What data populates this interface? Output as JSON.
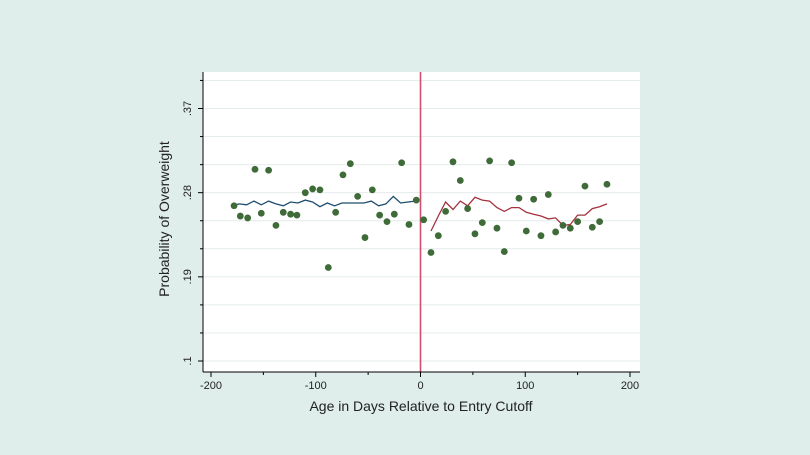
{
  "chart_data": {
    "type": "scatter",
    "title": "",
    "xlabel": "Age in Days Relative to Entry Cutoff",
    "ylabel": "Probability of Overweight",
    "xlim": [
      -210,
      210
    ],
    "ylim": [
      0.095,
      0.4
    ],
    "x_ticks": [
      -200,
      -100,
      0,
      100,
      200
    ],
    "x_tick_labels": [
      "-200",
      "-100",
      "0",
      "100",
      "200"
    ],
    "y_ticks": [
      0.1,
      0.19,
      0.28,
      0.37
    ],
    "y_tick_labels": [
      ".1",
      ".19",
      ".28",
      ".37"
    ],
    "grid": true,
    "legend": "none",
    "cutoff_x": 0,
    "colors": {
      "background": "#dfeeeb",
      "plot_background": "#ffffff",
      "grid": "#e4ecec",
      "points": "#3e6b38",
      "fit_left": "#1f4e6e",
      "fit_right": "#a4323f",
      "cutoff_line": "#d1506f",
      "axis": "#000000"
    },
    "series": [
      {
        "type": "scatter",
        "x": [
          -178,
          -172,
          -165,
          -158,
          -152,
          -145,
          -138,
          -131,
          -124,
          -118,
          -110,
          -103,
          -96,
          -88,
          -81,
          -74,
          -67,
          -60,
          -53,
          -46,
          -39,
          -32,
          -25,
          -18,
          -11,
          -4,
          3,
          10,
          17,
          24,
          31,
          38,
          45,
          52,
          59,
          66,
          73,
          80,
          87,
          94,
          101,
          108,
          115,
          122,
          129,
          136,
          143,
          150,
          157,
          164,
          171,
          178
        ],
        "y": [
          0.266,
          0.255,
          0.253,
          0.305,
          0.258,
          0.304,
          0.245,
          0.259,
          0.257,
          0.256,
          0.28,
          0.284,
          0.283,
          0.2,
          0.259,
          0.299,
          0.311,
          0.276,
          0.232,
          0.283,
          0.256,
          0.249,
          0.257,
          0.312,
          0.246,
          0.272,
          0.251,
          0.216,
          0.234,
          0.26,
          0.313,
          0.293,
          0.263,
          0.236,
          0.248,
          0.314,
          0.242,
          0.217,
          0.312,
          0.274,
          0.239,
          0.273,
          0.234,
          0.278,
          0.238,
          0.245,
          0.242,
          0.249,
          0.287,
          0.243,
          0.249,
          0.289
        ]
      },
      {
        "type": "line",
        "name": "",
        "x": [
          -180,
          -173,
          -166,
          -159,
          -152,
          -145,
          -138,
          -131,
          -124,
          -117,
          -110,
          -103,
          -96,
          -89,
          -82,
          -75,
          -68,
          -61,
          -54,
          -47,
          -40,
          -33,
          -26,
          -19,
          -12,
          -5
        ],
        "y": [
          0.266,
          0.268,
          0.267,
          0.271,
          0.267,
          0.271,
          0.268,
          0.266,
          0.27,
          0.269,
          0.272,
          0.27,
          0.265,
          0.269,
          0.266,
          0.269,
          0.269,
          0.269,
          0.269,
          0.271,
          0.266,
          0.268,
          0.276,
          0.269,
          0.27,
          0.271
        ]
      },
      {
        "type": "line",
        "name": "",
        "x": [
          10,
          17,
          24,
          31,
          38,
          45,
          52,
          59,
          66,
          73,
          80,
          87,
          94,
          101,
          108,
          115,
          122,
          129,
          136,
          143,
          150,
          157,
          164,
          171,
          178
        ],
        "y": [
          0.239,
          0.255,
          0.27,
          0.262,
          0.271,
          0.266,
          0.275,
          0.272,
          0.271,
          0.264,
          0.26,
          0.264,
          0.264,
          0.259,
          0.257,
          0.255,
          0.252,
          0.253,
          0.245,
          0.246,
          0.256,
          0.256,
          0.263,
          0.265,
          0.268
        ]
      }
    ]
  }
}
